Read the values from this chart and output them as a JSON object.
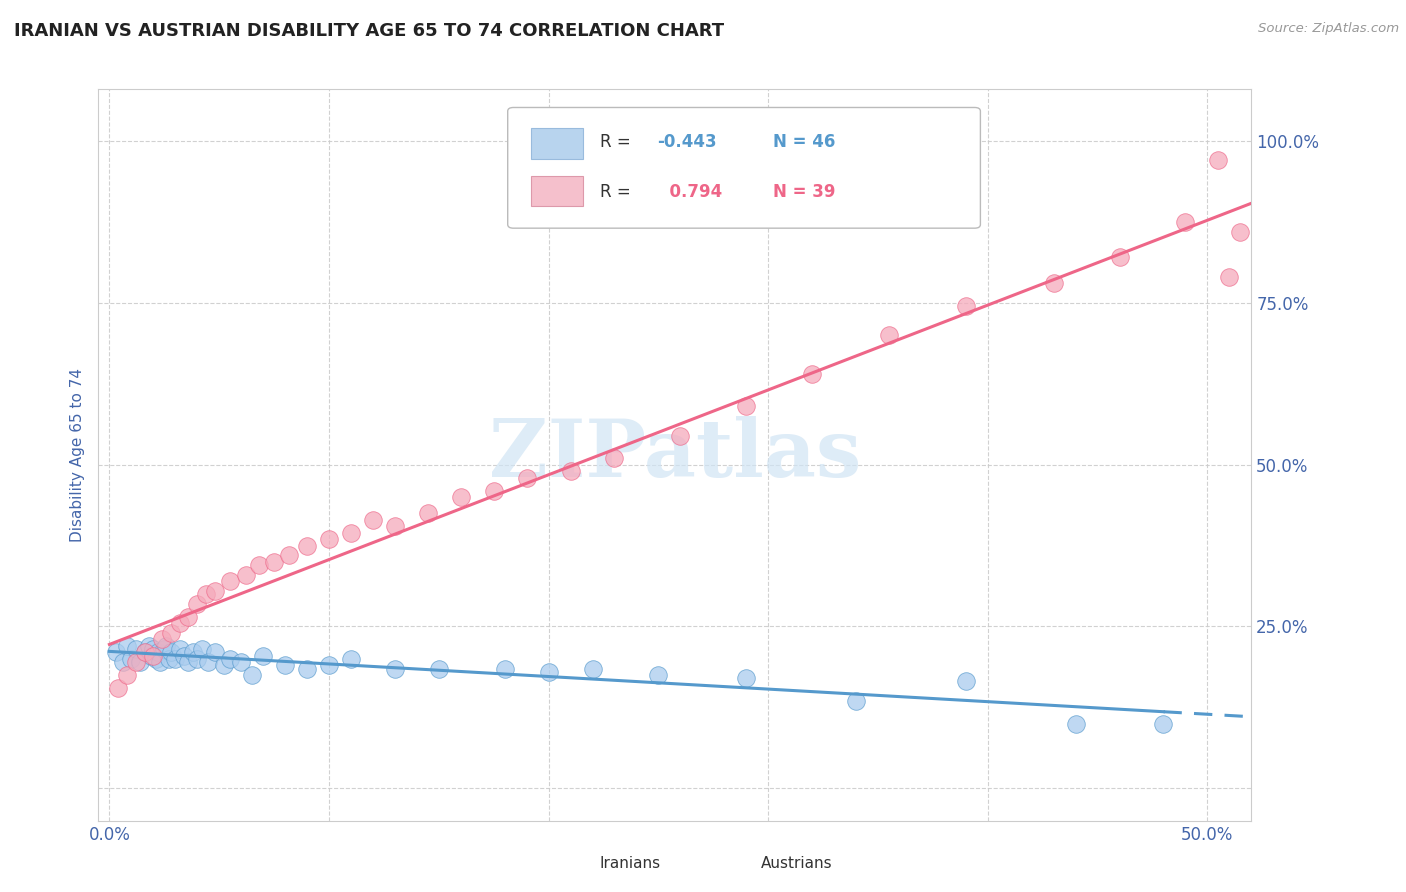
{
  "title": "IRANIAN VS AUSTRIAN DISABILITY AGE 65 TO 74 CORRELATION CHART",
  "source_text": "Source: ZipAtlas.com",
  "ylabel": "Disability Age 65 to 74",
  "xlim": [
    -0.005,
    0.52
  ],
  "ylim": [
    -0.05,
    1.08
  ],
  "xtick_positions": [
    0.0,
    0.1,
    0.2,
    0.3,
    0.4,
    0.5
  ],
  "xticklabels": [
    "0.0%",
    "",
    "",
    "",
    "",
    "50.0%"
  ],
  "ytick_positions": [
    0.0,
    0.25,
    0.5,
    0.75,
    1.0
  ],
  "yticklabels_right": [
    "",
    "25.0%",
    "50.0%",
    "75.0%",
    "100.0%"
  ],
  "iranian_R": -0.443,
  "iranian_N": 46,
  "austrian_R": 0.794,
  "austrian_N": 39,
  "iranian_color": "#aaccee",
  "austrian_color": "#f5aabb",
  "iranian_line_color": "#5599cc",
  "austrian_line_color": "#ee6688",
  "legend_iranian_fill": "#b8d4ee",
  "legend_austrian_fill": "#f5c0cc",
  "watermark_color": "#d0e4f4",
  "iranians_x": [
    0.003,
    0.006,
    0.008,
    0.01,
    0.012,
    0.014,
    0.016,
    0.018,
    0.019,
    0.02,
    0.021,
    0.022,
    0.023,
    0.025,
    0.026,
    0.027,
    0.028,
    0.03,
    0.032,
    0.034,
    0.036,
    0.038,
    0.04,
    0.042,
    0.045,
    0.048,
    0.052,
    0.055,
    0.06,
    0.065,
    0.07,
    0.08,
    0.09,
    0.1,
    0.11,
    0.13,
    0.15,
    0.18,
    0.2,
    0.22,
    0.25,
    0.29,
    0.34,
    0.39,
    0.44,
    0.48
  ],
  "iranians_y": [
    0.21,
    0.195,
    0.22,
    0.2,
    0.215,
    0.195,
    0.21,
    0.22,
    0.205,
    0.215,
    0.2,
    0.21,
    0.195,
    0.215,
    0.22,
    0.2,
    0.21,
    0.2,
    0.215,
    0.205,
    0.195,
    0.21,
    0.2,
    0.215,
    0.195,
    0.21,
    0.19,
    0.2,
    0.195,
    0.175,
    0.205,
    0.19,
    0.185,
    0.19,
    0.2,
    0.185,
    0.185,
    0.185,
    0.18,
    0.185,
    0.175,
    0.17,
    0.135,
    0.165,
    0.1,
    0.1
  ],
  "austrians_x": [
    0.004,
    0.008,
    0.012,
    0.016,
    0.02,
    0.024,
    0.028,
    0.032,
    0.036,
    0.04,
    0.044,
    0.048,
    0.055,
    0.062,
    0.068,
    0.075,
    0.082,
    0.09,
    0.1,
    0.11,
    0.12,
    0.13,
    0.145,
    0.16,
    0.175,
    0.19,
    0.21,
    0.23,
    0.26,
    0.29,
    0.32,
    0.355,
    0.39,
    0.43,
    0.46,
    0.49,
    0.505,
    0.51,
    0.515
  ],
  "austrians_y": [
    0.155,
    0.175,
    0.195,
    0.21,
    0.205,
    0.23,
    0.24,
    0.255,
    0.265,
    0.285,
    0.3,
    0.305,
    0.32,
    0.33,
    0.345,
    0.35,
    0.36,
    0.375,
    0.385,
    0.395,
    0.415,
    0.405,
    0.425,
    0.45,
    0.46,
    0.48,
    0.49,
    0.51,
    0.545,
    0.59,
    0.64,
    0.7,
    0.745,
    0.78,
    0.82,
    0.875,
    0.97,
    0.79,
    0.86
  ],
  "background_color": "#ffffff",
  "grid_color": "#cccccc",
  "title_color": "#222222",
  "axis_label_color": "#4466aa",
  "tick_label_color": "#4466aa"
}
